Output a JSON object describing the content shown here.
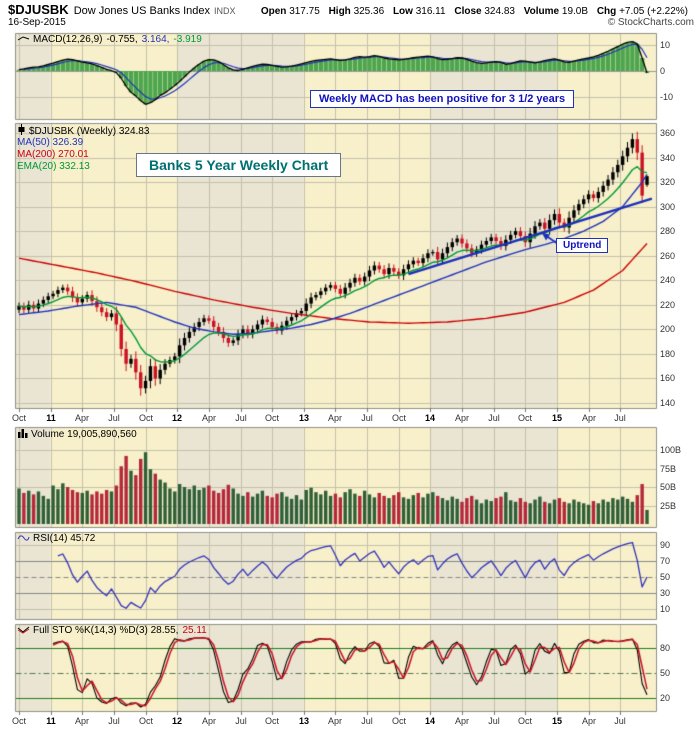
{
  "header": {
    "symbol": "$DJUSBK",
    "name": "Dow Jones US Banks Index",
    "exchange": "INDX",
    "date": "16-Sep-2015",
    "copyright": "© StockCharts.com",
    "quote_fields": [
      {
        "label": "Open",
        "value": "317.75"
      },
      {
        "label": "High",
        "value": "325.36"
      },
      {
        "label": "Low",
        "value": "316.11"
      },
      {
        "label": "Close",
        "value": "324.83"
      },
      {
        "label": "Volume",
        "value": "19.0B"
      },
      {
        "label": "Chg",
        "value": "+7.05 (+2.22%)"
      }
    ]
  },
  "legends": {
    "macd": {
      "name": "MACD(12,26,9)",
      "v1": "-0.755,",
      "v2": "3.164,",
      "v3": "-3.919"
    },
    "price": {
      "main": "$DJUSBK (Weekly) 324.83",
      "ma50": "MA(50) 326.39",
      "ma200": "MA(200) 270.01",
      "ema20": "EMA(20) 332.13"
    },
    "volume": {
      "label": "Volume 19,005,890,560"
    },
    "rsi": {
      "label": "RSI(14) 45.72"
    },
    "sto": {
      "k": "Full STO %K(14,3) %D(3) 28.55,",
      "d": "25.11"
    }
  },
  "annotations": {
    "macd_note": "Weekly MACD has been positive for 3 1/2 years",
    "title_note": "Banks 5 Year Weekly Chart",
    "uptrend_note": "Uptrend"
  },
  "colors": {
    "bands": [
      "#e9e5d2",
      "#f7f0ca"
    ],
    "grid": "#c6c0ac",
    "panel_border": "#8f8f82",
    "up": "#000000",
    "down": "#cc1122",
    "ma50": "#2233bb",
    "ma200": "#cc0000",
    "ema20": "#009933",
    "macd_line": "#000000",
    "macd_signal": "#2233bb",
    "macd_hist": "#4da64d",
    "vol_up": "#2f5f37",
    "vol_down": "#b5283a",
    "rsi": "#3333bb",
    "sto_k": "#000000",
    "sto_d": "#cc1122",
    "sto_ref": "#1e7d1e",
    "trendline": "#1c2fbb",
    "annotation_blue": "#1111bb",
    "annotation_teal": "#007070"
  },
  "chart_data": {
    "type": "candlestick multi-panel financial chart (weekly)",
    "x_domain_note": "index 0 = Oct-2010, index 129 = 16-Sep-2015, 1 step = 2 weeks",
    "x_ticks": [
      {
        "i": 0,
        "l": "Oct"
      },
      {
        "i": 6.5,
        "l": "11",
        "yr": true
      },
      {
        "i": 13,
        "l": "Apr"
      },
      {
        "i": 19.5,
        "l": "Jul"
      },
      {
        "i": 26,
        "l": "Oct"
      },
      {
        "i": 32.5,
        "l": "12",
        "yr": true
      },
      {
        "i": 39,
        "l": "Apr"
      },
      {
        "i": 45.5,
        "l": "Jul"
      },
      {
        "i": 52,
        "l": "Oct"
      },
      {
        "i": 58.5,
        "l": "13",
        "yr": true
      },
      {
        "i": 65,
        "l": "Apr"
      },
      {
        "i": 71.5,
        "l": "Jul"
      },
      {
        "i": 78,
        "l": "Oct"
      },
      {
        "i": 84.5,
        "l": "14",
        "yr": true
      },
      {
        "i": 91,
        "l": "Apr"
      },
      {
        "i": 97.5,
        "l": "Jul"
      },
      {
        "i": 104,
        "l": "Oct"
      },
      {
        "i": 110.5,
        "l": "15",
        "yr": true
      },
      {
        "i": 117,
        "l": "Apr"
      },
      {
        "i": 123.5,
        "l": "Jul"
      }
    ],
    "year_bands": [
      [
        -0.8,
        6.5,
        0
      ],
      [
        6.5,
        32.5,
        1
      ],
      [
        32.5,
        58.5,
        0
      ],
      [
        58.5,
        84.5,
        1
      ],
      [
        84.5,
        110.5,
        0
      ],
      [
        110.5,
        130.8,
        1
      ]
    ],
    "y_axis": {
      "macd": [
        {
          "v": 10,
          "l": "10"
        },
        {
          "v": 0,
          "l": "0"
        },
        {
          "v": -10,
          "l": "-10"
        }
      ],
      "price": [
        {
          "v": 360,
          "l": "360"
        },
        {
          "v": 340,
          "l": "340"
        },
        {
          "v": 320,
          "l": "320"
        },
        {
          "v": 300,
          "l": "300"
        },
        {
          "v": 280,
          "l": "280"
        },
        {
          "v": 260,
          "l": "260"
        },
        {
          "v": 240,
          "l": "240"
        },
        {
          "v": 220,
          "l": "220"
        },
        {
          "v": 200,
          "l": "200"
        },
        {
          "v": 180,
          "l": "180"
        },
        {
          "v": 160,
          "l": "160"
        },
        {
          "v": 140,
          "l": "140"
        }
      ],
      "volume": [
        {
          "v": 100,
          "l": "100B"
        },
        {
          "v": 75,
          "l": "75B"
        },
        {
          "v": 50,
          "l": "50B"
        },
        {
          "v": 25,
          "l": "25B"
        }
      ],
      "rsi": [
        {
          "v": 90,
          "l": "90"
        },
        {
          "v": 70,
          "l": "70"
        },
        {
          "v": 50,
          "l": "50"
        },
        {
          "v": 30,
          "l": "30"
        },
        {
          "v": 10,
          "l": "10"
        }
      ],
      "sto": [
        {
          "v": 80,
          "l": "80"
        },
        {
          "v": 50,
          "l": "50"
        },
        {
          "v": 20,
          "l": "20"
        }
      ]
    },
    "close": [
      219,
      216,
      220,
      217,
      221,
      224,
      227,
      229,
      232,
      234,
      231,
      226,
      222,
      225,
      228,
      223,
      218,
      214,
      210,
      213,
      204,
      184,
      172,
      176,
      165,
      152,
      158,
      170,
      160,
      167,
      172,
      175,
      178,
      187,
      193,
      198,
      202,
      206,
      209,
      207,
      202,
      198,
      193,
      189,
      191,
      196,
      200,
      196,
      200,
      204,
      208,
      206,
      202,
      199,
      203,
      207,
      210,
      213,
      215,
      221,
      226,
      228,
      231,
      234,
      236,
      233,
      229,
      234,
      238,
      242,
      239,
      243,
      248,
      252,
      249,
      245,
      250,
      247,
      244,
      249,
      253,
      256,
      254,
      258,
      262,
      263,
      257,
      262,
      267,
      271,
      274,
      270,
      266,
      262,
      265,
      269,
      272,
      275,
      272,
      268,
      273,
      277,
      280,
      276,
      271,
      278,
      284,
      287,
      282,
      289,
      294,
      287,
      283,
      291,
      297,
      302,
      306,
      310,
      307,
      312,
      317,
      322,
      328,
      334,
      341,
      348,
      355,
      344,
      309,
      324.83
    ],
    "last_candle": {
      "o": 317.75,
      "h": 325.36,
      "l": 316.11,
      "c": 324.83
    },
    "macd": [
      0.5,
      0.8,
      1.2,
      1.5,
      1.6,
      2.0,
      2.5,
      3.0,
      3.6,
      4.2,
      4.6,
      4.4,
      3.9,
      3.4,
      3.1,
      2.7,
      2.1,
      1.4,
      0.6,
      0.1,
      -0.6,
      -2.8,
      -5.8,
      -8.2,
      -9.6,
      -11.4,
      -12.8,
      -12.2,
      -11.0,
      -9.4,
      -8.4,
      -7.0,
      -5.6,
      -4.0,
      -2.2,
      -0.4,
      1.2,
      2.6,
      3.8,
      4.4,
      4.3,
      3.6,
      2.4,
      1.2,
      0.4,
      0.2,
      0.6,
      1.2,
      1.8,
      2.3,
      2.6,
      2.5,
      2.2,
      1.8,
      1.5,
      1.6,
      1.9,
      2.3,
      2.7,
      3.2,
      3.7,
      4.1,
      4.3,
      4.5,
      4.7,
      4.4,
      4.1,
      4.3,
      4.7,
      5.2,
      5.5,
      5.3,
      5.5,
      5.9,
      5.6,
      5.0,
      4.7,
      4.5,
      4.3,
      4.5,
      4.8,
      5.1,
      5.3,
      5.5,
      5.7,
      5.4,
      4.8,
      4.4,
      4.5,
      4.8,
      5.1,
      5.0,
      4.5,
      3.8,
      3.2,
      2.9,
      3.1,
      3.4,
      3.6,
      3.3,
      2.6,
      2.8,
      3.4,
      3.9,
      3.8,
      3.4,
      3.1,
      3.5,
      4.0,
      4.4,
      4.7,
      4.2,
      3.5,
      3.3,
      3.8,
      4.3,
      4.7,
      5.0,
      5.4,
      6.0,
      6.8,
      7.6,
      8.5,
      9.4,
      10.3,
      11.0,
      11.3,
      10.4,
      5.0,
      -0.755
    ],
    "volume_billions": [
      48,
      42,
      45,
      40,
      44,
      38,
      34,
      52,
      47,
      55,
      50,
      46,
      43,
      42,
      45,
      40,
      44,
      41,
      46,
      44,
      52,
      78,
      92,
      72,
      66,
      88,
      97,
      74,
      68,
      60,
      56,
      48,
      44,
      54,
      50,
      47,
      52,
      46,
      49,
      52,
      45,
      42,
      47,
      53,
      48,
      41,
      38,
      43,
      37,
      41,
      45,
      38,
      36,
      41,
      43,
      37,
      34,
      39,
      33,
      46,
      49,
      43,
      40,
      45,
      38,
      41,
      36,
      43,
      47,
      41,
      38,
      45,
      40,
      36,
      42,
      38,
      35,
      39,
      43,
      36,
      34,
      39,
      42,
      36,
      41,
      43,
      38,
      35,
      32,
      37,
      34,
      30,
      35,
      38,
      33,
      28,
      33,
      31,
      35,
      37,
      43,
      32,
      30,
      35,
      30,
      28,
      33,
      37,
      30,
      28,
      33,
      35,
      30,
      28,
      33,
      30,
      28,
      26,
      31,
      28,
      33,
      30,
      35,
      33,
      37,
      34,
      30,
      39,
      54,
      19
    ],
    "overlays": {
      "ma50_anchors": [
        [
          0,
          212
        ],
        [
          6,
          215
        ],
        [
          12,
          219
        ],
        [
          18,
          222
        ],
        [
          24,
          218
        ],
        [
          28,
          212
        ],
        [
          32,
          206
        ],
        [
          36,
          201
        ],
        [
          40,
          198
        ],
        [
          44,
          196
        ],
        [
          48,
          197
        ],
        [
          52,
          199
        ],
        [
          56,
          201
        ],
        [
          60,
          204
        ],
        [
          64,
          208
        ],
        [
          68,
          213
        ],
        [
          72,
          219
        ],
        [
          76,
          225
        ],
        [
          80,
          231
        ],
        [
          84,
          237
        ],
        [
          88,
          243
        ],
        [
          92,
          249
        ],
        [
          96,
          255
        ],
        [
          100,
          260
        ],
        [
          104,
          265
        ],
        [
          108,
          269
        ],
        [
          112,
          274
        ],
        [
          116,
          280
        ],
        [
          120,
          288
        ],
        [
          124,
          300
        ],
        [
          126,
          310
        ],
        [
          128,
          320
        ],
        [
          129,
          326.39
        ]
      ],
      "ma200_anchors": [
        [
          0,
          258
        ],
        [
          8,
          252
        ],
        [
          16,
          246
        ],
        [
          24,
          239
        ],
        [
          32,
          231
        ],
        [
          40,
          224
        ],
        [
          48,
          218
        ],
        [
          56,
          213
        ],
        [
          64,
          209
        ],
        [
          72,
          206
        ],
        [
          80,
          205
        ],
        [
          88,
          206
        ],
        [
          96,
          209
        ],
        [
          104,
          214
        ],
        [
          112,
          222
        ],
        [
          118,
          232
        ],
        [
          124,
          248
        ],
        [
          129,
          270.01
        ]
      ],
      "trendline": {
        "from": [
          80,
          245
        ],
        "to": [
          130,
          306.5
        ]
      }
    },
    "panel_values": {
      "macd_line": -0.755,
      "macd_signal": 3.164,
      "macd_hist": -3.919,
      "close": 324.83,
      "ma50": 326.39,
      "ma200": 270.01,
      "ema20": 332.13,
      "volume": "19,005,890,560",
      "rsi": 45.72,
      "sto_k": 28.55,
      "sto_d": 25.11
    }
  }
}
